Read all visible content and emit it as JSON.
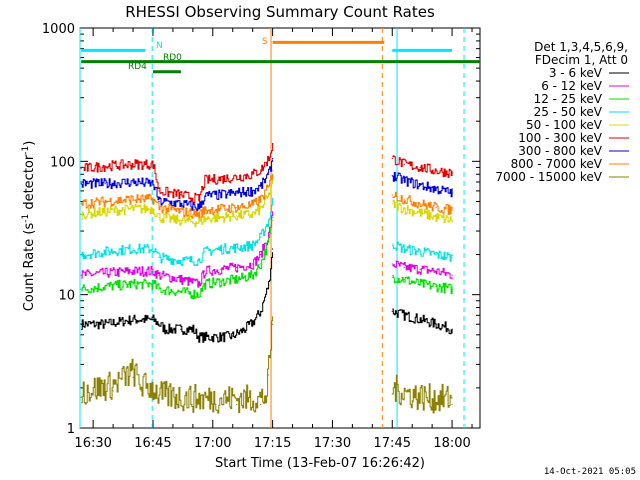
{
  "chart_data": {
    "type": "line",
    "title": "RHESSI Observing Summary Count Rates",
    "xlabel": "Start Time (13-Feb-07 16:26:42)",
    "ylabel_main": "Count Rate (s",
    "ylabel_sup1": "-1",
    "ylabel_mid": " detector",
    "ylabel_sup2": "-1",
    "ylabel_end": ")",
    "y_scale": "log",
    "ylim": [
      1,
      1000
    ],
    "xlim": [
      26.7,
      127
    ],
    "x_unit_note": "minutes after 16:00",
    "y_ticks": [
      {
        "label": "1",
        "value": 1
      },
      {
        "label": "10",
        "value": 10
      },
      {
        "label": "100",
        "value": 100
      },
      {
        "label": "1000",
        "value": 1000
      }
    ],
    "x_ticks": [
      {
        "label": "16:30",
        "value": 30
      },
      {
        "label": "16:45",
        "value": 45
      },
      {
        "label": "17:00",
        "value": 60
      },
      {
        "label": "17:15",
        "value": 75
      },
      {
        "label": "17:30",
        "value": 90
      },
      {
        "label": "17:45",
        "value": 105
      },
      {
        "label": "18:00",
        "value": 120
      }
    ],
    "legend_header": [
      "Det 1,3,4,5,6,9,",
      "FDecim 1, Att 0"
    ],
    "series": [
      {
        "name": "3 - 6 keV",
        "color": "#000000",
        "segments": [
          {
            "x": [
              27,
              33,
              40,
              45,
              46.5,
              48,
              52,
              55,
              56.5,
              58,
              62,
              65,
              68,
              70,
              72,
              74,
              75
            ],
            "y": [
              6,
              6,
              6.5,
              6.5,
              6,
              5.5,
              5.5,
              5.5,
              4.8,
              4.8,
              4.8,
              4.9,
              5.5,
              6.2,
              7.5,
              12,
              22
            ]
          },
          {
            "x": [
              105,
              108,
              112,
              116,
              120
            ],
            "y": [
              7.5,
              7,
              6.5,
              6,
              5.5
            ]
          }
        ]
      },
      {
        "name": "6 - 12 keV",
        "color": "#e000e0",
        "segments": [
          {
            "x": [
              27,
              33,
              40,
              45,
              46.5,
              52,
              56.5,
              58,
              62,
              66,
              70,
              72,
              74,
              75
            ],
            "y": [
              14,
              14.5,
              15,
              15,
              14,
              13,
              12,
              15,
              15.5,
              16,
              17,
              20,
              28,
              40
            ]
          },
          {
            "x": [
              105,
              108,
              112,
              116,
              120
            ],
            "y": [
              17,
              16,
              15.5,
              15,
              14
            ]
          }
        ]
      },
      {
        "name": "12 - 25 keV",
        "color": "#00e000",
        "segments": [
          {
            "x": [
              27,
              33,
              40,
              45,
              46.5,
              52,
              56.5,
              58,
              62,
              66,
              70,
              72,
              74,
              75
            ],
            "y": [
              11,
              11.5,
              12,
              12,
              11,
              10.5,
              10,
              12,
              12.5,
              13,
              14,
              17,
              25,
              38
            ]
          },
          {
            "x": [
              105,
              108,
              112,
              116,
              120
            ],
            "y": [
              13.5,
              13,
              12,
              11.5,
              11
            ]
          }
        ]
      },
      {
        "name": "25 - 50 keV",
        "color": "#00e0e0",
        "segments": [
          {
            "x": [
              27,
              33,
              40,
              45,
              46.5,
              52,
              56.5,
              58,
              62,
              66,
              70,
              72,
              74,
              75
            ],
            "y": [
              20,
              21,
              22,
              22,
              19,
              18,
              18,
              21,
              22,
              22.5,
              23.5,
              27,
              36,
              50
            ]
          },
          {
            "x": [
              105,
              108,
              112,
              116,
              120
            ],
            "y": [
              24,
              22,
              21,
              20,
              19
            ]
          }
        ]
      },
      {
        "name": "50 - 100 keV",
        "color": "#d8d800",
        "segments": [
          {
            "x": [
              27,
              33,
              40,
              45,
              46.5,
              52,
              56.5,
              58,
              62,
              66,
              70,
              72,
              74,
              75
            ],
            "y": [
              40,
              42,
              44,
              44,
              38,
              36,
              35,
              37,
              38,
              39,
              40,
              44,
              55,
              75
            ]
          },
          {
            "x": [
              105,
              108,
              112,
              116,
              120
            ],
            "y": [
              48,
              44,
              41,
              38,
              36
            ]
          }
        ]
      },
      {
        "name": "100 - 300 keV",
        "color": "#e00000",
        "segments": [
          {
            "x": [
              27,
              33,
              40,
              45,
              46.5,
              52,
              56.5,
              58,
              62,
              66,
              70,
              72,
              74,
              75
            ],
            "y": [
              88,
              92,
              95,
              95,
              60,
              56,
              52,
              72,
              74,
              76,
              80,
              86,
              105,
              135
            ]
          },
          {
            "x": [
              105,
              108,
              112,
              116,
              120
            ],
            "y": [
              105,
              95,
              90,
              85,
              82
            ]
          }
        ]
      },
      {
        "name": "300 - 800 keV",
        "color": "#0000d8",
        "segments": [
          {
            "x": [
              27,
              33,
              40,
              45,
              46.5,
              52,
              56.5,
              58,
              62,
              66,
              70,
              72,
              74,
              75
            ],
            "y": [
              68,
              68,
              70,
              68,
              50,
              48,
              45,
              55,
              56,
              58,
              60,
              65,
              80,
              105
            ]
          },
          {
            "x": [
              105,
              108,
              112,
              116,
              120
            ],
            "y": [
              78,
              72,
              66,
              62,
              58
            ]
          }
        ]
      },
      {
        "name": "800 - 7000 keV",
        "color": "#ff8000",
        "segments": [
          {
            "x": [
              27,
              33,
              40,
              45,
              46.5,
              52,
              56.5,
              58,
              62,
              66,
              70,
              72,
              74,
              75
            ],
            "y": [
              48,
              50,
              52,
              52,
              45,
              42,
              40,
              43,
              44,
              45,
              47,
              52,
              64,
              85
            ]
          },
          {
            "x": [
              105,
              108,
              112,
              116,
              120
            ],
            "y": [
              56,
              52,
              48,
              45,
              43
            ]
          }
        ]
      },
      {
        "name": "7000 - 15000 keV",
        "color": "#8b8000",
        "segments": [
          {
            "x": [
              27,
              35,
              40,
              42,
              45,
              46.5,
              56,
              60,
              66,
              72,
              73.5,
              74,
              75
            ],
            "y": [
              1.7,
              1.9,
              2.4,
              1.9,
              1.8,
              1.6,
              1.5,
              1.5,
              1.5,
              1.5,
              1.6,
              2.5,
              6
            ]
          },
          {
            "x": [
              105,
              110,
              115,
              120
            ],
            "y": [
              1.8,
              1.6,
              1.5,
              1.5
            ]
          }
        ]
      }
    ],
    "annotations": {
      "night_label": "N",
      "saa_label": "S",
      "rd0_label": "RD0",
      "rd4_label": "RD4"
    },
    "flag_bars": {
      "night": {
        "color": "#00e8ff",
        "ranges": [
          [
            27,
            43
          ],
          [
            105,
            120
          ]
        ],
        "y_level": 680
      },
      "saa": {
        "color": "#ff8000",
        "ranges": [
          [
            75,
            103
          ]
        ],
        "y_level": 780
      },
      "rd4": {
        "color": "#008000",
        "ranges": [
          [
            27,
            127
          ]
        ],
        "y_level": 560
      },
      "rd0": {
        "color": "#008000",
        "ranges": [
          [
            45,
            52
          ]
        ],
        "y_level": 470
      }
    },
    "vlines": [
      {
        "x": 26.7,
        "color": "#00e8ff",
        "dash": false
      },
      {
        "x": 44.8,
        "color": "#00e8ff",
        "dash": true
      },
      {
        "x": 74.6,
        "color": "#ff8000",
        "dash": false
      },
      {
        "x": 102.5,
        "color": "#ff8000",
        "dash": true
      },
      {
        "x": 106.2,
        "color": "#00e8ff",
        "dash": false
      },
      {
        "x": 123,
        "color": "#00e8ff",
        "dash": true
      }
    ],
    "grid": false,
    "legend_placement": "right"
  },
  "footer": {
    "timestamp": "14-Oct-2021 05:05"
  }
}
